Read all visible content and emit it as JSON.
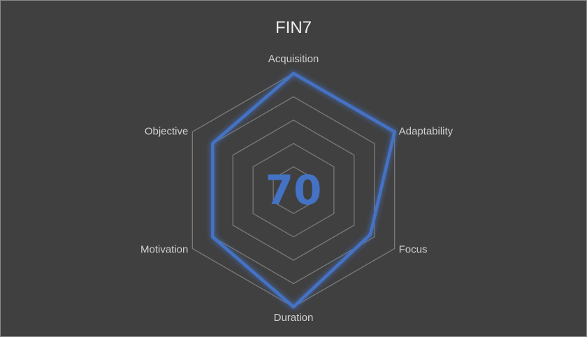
{
  "chart_data": {
    "type": "radar",
    "title": "FIN7",
    "categories": [
      "Acquisition",
      "Adaptability",
      "Focus",
      "Duration",
      "Motivation",
      "Objective"
    ],
    "series": [
      {
        "values": [
          5,
          5,
          3.8,
          5,
          4,
          4
        ]
      }
    ],
    "rlim": [
      0,
      5
    ],
    "ring_step": 1,
    "center_label": "70",
    "colors": {
      "series": "#4472c4",
      "grid": "#7a7a7a",
      "background": "#404040",
      "text": "#d0d0d0"
    }
  }
}
